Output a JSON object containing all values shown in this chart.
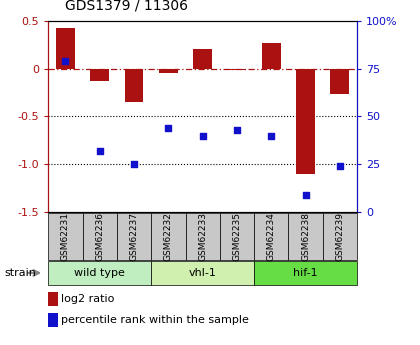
{
  "title": "GDS1379 / 11306",
  "samples": [
    "GSM62231",
    "GSM62236",
    "GSM62237",
    "GSM62232",
    "GSM62233",
    "GSM62235",
    "GSM62234",
    "GSM62238",
    "GSM62239"
  ],
  "log2_ratio": [
    0.42,
    -0.13,
    -0.35,
    -0.05,
    0.2,
    -0.02,
    0.27,
    -1.1,
    -0.27
  ],
  "percentile_rank": [
    79,
    32,
    25,
    44,
    40,
    43,
    40,
    9,
    24
  ],
  "groups": [
    {
      "label": "wild type",
      "start": 0,
      "end": 3,
      "color": "#c0eec0"
    },
    {
      "label": "vhl-1",
      "start": 3,
      "end": 6,
      "color": "#d0f0b0"
    },
    {
      "label": "hif-1",
      "start": 6,
      "end": 9,
      "color": "#66dd44"
    }
  ],
  "ylim_left": [
    -1.5,
    0.5
  ],
  "ylim_right": [
    0,
    100
  ],
  "bar_color": "#aa1111",
  "dot_color": "#1111cc",
  "left_ticks": [
    -1.5,
    -1.0,
    -0.5,
    0.0,
    0.5
  ],
  "right_ticks": [
    0,
    25,
    50,
    75,
    100
  ],
  "right_tick_labels": [
    "0",
    "25",
    "50",
    "75",
    "100%"
  ],
  "bar_width": 0.55,
  "strain_label": "strain",
  "legend_bar_label": "log2 ratio",
  "legend_dot_label": "percentile rank within the sample",
  "sample_box_color": "#c8c8c8",
  "fig_bg": "#ffffff"
}
